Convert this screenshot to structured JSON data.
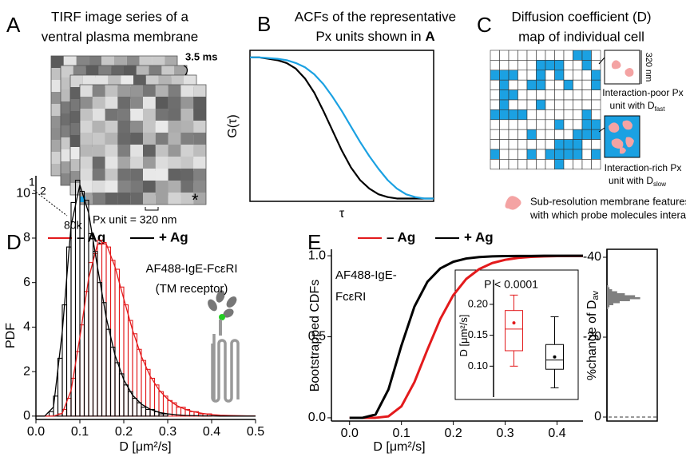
{
  "panels": {
    "a": {
      "letter": "A",
      "title": [
        "TIRF image series of a",
        "ventral plasma membrane"
      ],
      "frame_interval": "3.5 ms",
      "frame_labels": [
        "1",
        "2"
      ],
      "frame_count": "80k",
      "px_unit": "Px unit = 320 nm",
      "marker": "*"
    },
    "b": {
      "letter": "B",
      "title": [
        "ACFs of the representative",
        "Px units shown in "
      ],
      "title_bold": "A"
    },
    "c": {
      "letter": "C",
      "title": [
        "Diffusion coefficient (D)",
        "map of individual cell"
      ],
      "scale": "320 nm",
      "poor": [
        "Interaction-poor Px",
        "unit with D"
      ],
      "poor_sub": "fast",
      "rich": [
        "Interaction-rich Px",
        "unit with D"
      ],
      "rich_sub": "slow",
      "legend": [
        "Sub-resolution membrane features",
        "with which probe molecules interact"
      ]
    },
    "d": {
      "letter": "D"
    },
    "e": {
      "letter": "E"
    }
  },
  "chart_data": [
    {
      "type": "line",
      "xlabel": "τ",
      "ylabel": "G(τ)",
      "xlim": [
        0,
        1
      ],
      "ylim": [
        -0.02,
        1.05
      ],
      "x": [
        0,
        0.05,
        0.1,
        0.15,
        0.2,
        0.25,
        0.3,
        0.35,
        0.4,
        0.45,
        0.5,
        0.55,
        0.6,
        0.65,
        0.7,
        0.75,
        0.8,
        0.85,
        0.9,
        0.95,
        1
      ],
      "series": [
        {
          "color": "#000000",
          "values": [
            1,
            1,
            0.99,
            0.98,
            0.96,
            0.92,
            0.85,
            0.75,
            0.62,
            0.48,
            0.34,
            0.22,
            0.13,
            0.07,
            0.03,
            0.01,
            0,
            0,
            0,
            0,
            0
          ]
        },
        {
          "color": "#1ba1e2",
          "values": [
            1,
            1,
            0.995,
            0.99,
            0.98,
            0.96,
            0.93,
            0.88,
            0.81,
            0.72,
            0.62,
            0.51,
            0.4,
            0.3,
            0.21,
            0.13,
            0.07,
            0.03,
            0.01,
            0,
            0
          ]
        }
      ]
    },
    {
      "type": "histogram",
      "xlabel": "D [μm²/s]",
      "ylabel": "PDF",
      "annotation": [
        "AF488-IgE-FcεRI",
        "(TM receptor)"
      ],
      "legend": "top",
      "xlim": [
        0,
        0.5
      ],
      "ylim": [
        -0.15,
        10.8
      ],
      "xticks": [
        {
          "value": 0,
          "label": "0.0"
        },
        0.1,
        0.2,
        0.3,
        0.4,
        0.5
      ],
      "yticks": [
        0,
        2,
        4,
        6,
        8,
        10
      ],
      "bins": [
        0.02,
        0.03,
        0.04,
        0.05,
        0.06,
        0.07,
        0.08,
        0.09,
        0.1,
        0.11,
        0.12,
        0.13,
        0.14,
        0.15,
        0.16,
        0.17,
        0.18,
        0.19,
        0.2,
        0.21,
        0.22,
        0.23,
        0.24,
        0.25,
        0.26,
        0.27,
        0.28,
        0.29,
        0.3,
        0.31,
        0.32,
        0.33,
        0.34,
        0.35,
        0.36,
        0.37,
        0.38,
        0.39,
        0.4,
        0.41,
        0.42
      ],
      "fit_x": [
        0,
        0.02,
        0.04,
        0.06,
        0.08,
        0.1,
        0.12,
        0.14,
        0.16,
        0.18,
        0.2,
        0.22,
        0.24,
        0.26,
        0.28,
        0.3,
        0.32,
        0.34,
        0.36,
        0.38,
        0.4,
        0.42,
        0.44,
        0.46,
        0.48,
        0.5
      ],
      "series": [
        {
          "name": "– Ag",
          "color": "#e31a1c",
          "values": [
            0,
            0,
            0,
            0.1,
            0.3,
            0.8,
            1.7,
            2.9,
            4.1,
            5.6,
            6.9,
            7.3,
            7.9,
            7.8,
            7.6,
            7.0,
            6.6,
            5.8,
            5.0,
            4.3,
            3.7,
            3.0,
            2.5,
            2.1,
            1.7,
            1.4,
            1.1,
            0.9,
            0.7,
            0.6,
            0.4,
            0.4,
            0.3,
            0.2,
            0.2,
            0.1,
            0.1,
            0.1,
            0,
            0
          ],
          "fit": [
            0,
            0,
            0,
            0.13,
            1.15,
            3.54,
            6.19,
            7.72,
            7.74,
            6.71,
            5.27,
            3.86,
            2.69,
            1.8,
            1.18,
            0.76,
            0.48,
            0.3,
            0.19,
            0.12,
            0.07,
            0.04,
            0.03,
            0.02,
            0.01,
            0.01
          ]
        },
        {
          "name": "+ Ag",
          "color": "#000000",
          "values": [
            0,
            0.2,
            0.9,
            2.6,
            5.0,
            7.6,
            9.6,
            10.6,
            10.1,
            9.7,
            8.2,
            7.4,
            6.0,
            5.1,
            3.9,
            3.1,
            2.4,
            1.9,
            1.4,
            1.1,
            0.8,
            0.6,
            0.4,
            0.3,
            0.3,
            0.2,
            0.1,
            0.1,
            0,
            0,
            0,
            0,
            0,
            0,
            0,
            0,
            0,
            0,
            0,
            0
          ],
          "fit": [
            0,
            0,
            0.41,
            3.8,
            8.56,
            10.39,
            9.13,
            6.71,
            4.43,
            2.74,
            1.63,
            0.94,
            0.54,
            0.31,
            0.17,
            0.1,
            0.06,
            0.03,
            0.02,
            0.01,
            0.01,
            0,
            0,
            0,
            0,
            0
          ]
        }
      ]
    },
    {
      "type": "line",
      "xlabel": "D [μm²/s]",
      "ylabel": "Bootstrapped CDFs",
      "annotation": [
        "AF488-IgE-",
        "FcεRI"
      ],
      "legend": "top",
      "xlim": [
        -0.035,
        0.45
      ],
      "ylim": [
        -0.02,
        1.04
      ],
      "xticks": [
        {
          "value": 0,
          "label": "0.0"
        },
        0.1,
        0.2,
        0.3,
        0.4
      ],
      "yticks": [
        {
          "value": 0,
          "label": "0.0"
        },
        0.5,
        {
          "value": 1,
          "label": "1.0"
        }
      ],
      "x": [
        0,
        0.025,
        0.05,
        0.075,
        0.1,
        0.125,
        0.15,
        0.175,
        0.2,
        0.225,
        0.25,
        0.275,
        0.3,
        0.325,
        0.35,
        0.375,
        0.4,
        0.425,
        0.45
      ],
      "series": [
        {
          "name": "– Ag",
          "color": "#e31a1c",
          "values": [
            0,
            0,
            0,
            0.009,
            0.071,
            0.22,
            0.42,
            0.61,
            0.757,
            0.857,
            0.918,
            0.955,
            0.975,
            0.987,
            0.993,
            0.996,
            0.998,
            0.999,
            0.999
          ]
        },
        {
          "name": "+ Ag",
          "color": "#000000",
          "values": [
            0,
            0,
            0.02,
            0.175,
            0.446,
            0.686,
            0.839,
            0.922,
            0.963,
            0.983,
            0.992,
            0.996,
            0.998,
            0.999,
            0.999,
            1,
            1,
            1,
            1
          ]
        }
      ]
    },
    {
      "type": "box",
      "title": "P < 0.0001",
      "ylabel": "D [μm²/s]",
      "ylim": [
        0.05,
        0.24
      ],
      "yticks": [
        {
          "value": 0.2,
          "label": "0.20"
        },
        0.15,
        {
          "value": 0.1,
          "label": "0.10"
        }
      ],
      "series": [
        {
          "color": "#e31a1c",
          "min": 0.1,
          "q1": 0.125,
          "median": 0.16,
          "q3": 0.19,
          "max": 0.215,
          "mean": 0.17
        },
        {
          "color": "#000000",
          "min": 0.065,
          "q1": 0.095,
          "median": 0.11,
          "q3": 0.135,
          "max": 0.18,
          "mean": 0.115
        }
      ]
    },
    {
      "type": "histogram",
      "orientation": "horizontal",
      "ylabel": "%change of D",
      "ylabel_sub": "av",
      "color": "#808080",
      "ylim": [
        1,
        -42
      ],
      "yticks": [
        -40,
        -20,
        0
      ],
      "bins": [
        -33,
        -32.5,
        -32,
        -31.5,
        -31,
        -30.5,
        -30,
        -29.5,
        -29,
        -28.5,
        -28,
        -27.5,
        -27
      ],
      "values": [
        1,
        2,
        4,
        8,
        14,
        22,
        26,
        18,
        10,
        5,
        2,
        1
      ]
    }
  ]
}
